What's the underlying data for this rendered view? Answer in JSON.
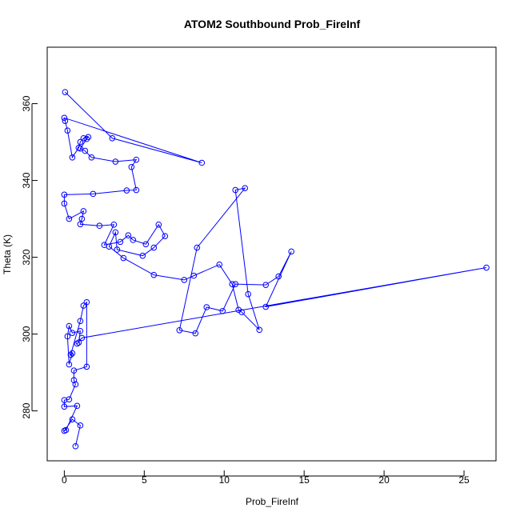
{
  "chart_data": {
    "type": "line",
    "title": "ATOM2 Southbound Prob_FireInf",
    "xlabel": "Prob_FireInf",
    "ylabel": "Theta (K)",
    "xlim": [
      -1.07,
      27.0
    ],
    "ylim": [
      267.0,
      374.7
    ],
    "xticks": [
      0,
      5,
      10,
      15,
      20,
      25
    ],
    "yticks": [
      280,
      300,
      320,
      340,
      360
    ],
    "xtick_labels": [
      "0",
      "5",
      "10",
      "15",
      "20",
      "25"
    ],
    "ytick_labels": [
      "280",
      "300",
      "320",
      "340",
      "360"
    ],
    "grid": false,
    "legend": "none",
    "series": [
      {
        "line_color": "#0000ff",
        "marker": "open-circle",
        "points": [
          [
            0.05,
            363.0
          ],
          [
            3.0,
            351.0
          ],
          [
            8.6,
            344.6
          ],
          [
            0.0,
            356.3
          ],
          [
            0.05,
            355.5
          ],
          [
            0.2,
            353.0
          ],
          [
            0.5,
            346.0
          ],
          [
            0.9,
            348.5
          ],
          [
            1.0,
            350.0
          ],
          [
            1.2,
            351.0
          ],
          [
            1.5,
            351.3
          ],
          [
            1.4,
            350.8
          ],
          [
            1.0,
            348.3
          ],
          [
            1.3,
            347.7
          ],
          [
            1.7,
            346.0
          ],
          [
            3.2,
            344.9
          ],
          [
            4.5,
            345.4
          ],
          [
            4.2,
            343.5
          ],
          [
            4.5,
            337.5
          ],
          [
            3.9,
            337.4
          ],
          [
            1.8,
            336.5
          ],
          [
            0.0,
            336.3
          ],
          [
            0.0,
            334.0
          ],
          [
            0.3,
            330.0
          ],
          [
            1.2,
            332.0
          ],
          [
            1.1,
            330.0
          ],
          [
            1.0,
            328.6
          ],
          [
            2.2,
            328.2
          ],
          [
            3.1,
            328.5
          ],
          [
            2.5,
            323.2
          ],
          [
            3.5,
            324.0
          ],
          [
            4.0,
            325.7
          ],
          [
            4.3,
            324.5
          ],
          [
            5.1,
            323.4
          ],
          [
            5.9,
            328.5
          ],
          [
            6.3,
            325.5
          ],
          [
            5.6,
            322.5
          ],
          [
            4.9,
            320.4
          ],
          [
            3.3,
            322.0
          ],
          [
            3.2,
            326.5
          ],
          [
            2.8,
            322.8
          ],
          [
            3.7,
            319.8
          ],
          [
            5.6,
            315.4
          ],
          [
            7.5,
            314.1
          ],
          [
            8.1,
            315.2
          ],
          [
            9.7,
            318.1
          ],
          [
            10.5,
            313.0
          ],
          [
            10.9,
            306.3
          ],
          [
            11.1,
            305.7
          ],
          [
            12.2,
            301.1
          ],
          [
            11.5,
            310.4
          ],
          [
            10.7,
            337.5
          ],
          [
            11.3,
            338.0
          ],
          [
            8.3,
            322.5
          ],
          [
            7.2,
            301.0
          ],
          [
            8.2,
            300.2
          ],
          [
            8.9,
            307.0
          ],
          [
            9.9,
            306.0
          ],
          [
            10.7,
            313.0
          ],
          [
            12.6,
            312.8
          ],
          [
            13.4,
            315.0
          ],
          [
            14.2,
            321.5
          ],
          [
            12.6,
            307.1
          ],
          [
            26.4,
            317.3
          ],
          [
            1.1,
            299.0
          ],
          [
            0.8,
            297.5
          ],
          [
            0.9,
            297.8
          ],
          [
            1.0,
            300.8
          ],
          [
            0.5,
            300.3
          ],
          [
            0.3,
            302.1
          ],
          [
            0.2,
            299.4
          ],
          [
            0.3,
            292.1
          ],
          [
            0.5,
            295.0
          ],
          [
            0.4,
            294.6
          ],
          [
            1.0,
            303.4
          ],
          [
            1.2,
            307.4
          ],
          [
            1.4,
            308.3
          ],
          [
            1.4,
            291.5
          ],
          [
            0.6,
            290.5
          ],
          [
            0.6,
            288.0
          ],
          [
            0.7,
            286.9
          ],
          [
            0.3,
            283.0
          ],
          [
            0.0,
            282.8
          ],
          [
            0.0,
            281.1
          ],
          [
            0.8,
            281.3
          ],
          [
            0.1,
            275.0
          ],
          [
            0.0,
            274.8
          ],
          [
            0.5,
            277.8
          ],
          [
            1.0,
            276.2
          ],
          [
            0.7,
            270.8
          ]
        ]
      }
    ]
  }
}
